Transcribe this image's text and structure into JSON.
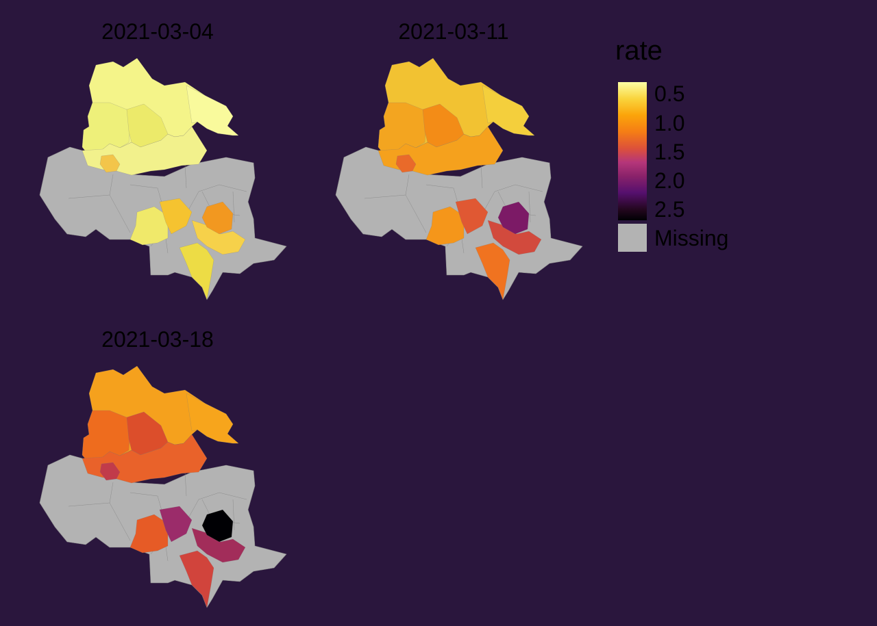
{
  "colors": {
    "background": "#2a163d",
    "missing": "#b3b3b3",
    "scale": "inferno (reversed): low rate = pale yellow, high rate = black"
  },
  "legend": {
    "title": "rate",
    "ticks": [
      "0.5",
      "1.0",
      "1.5",
      "2.0",
      "2.5"
    ],
    "missing_label": "Missing"
  },
  "panels": [
    {
      "title": "2021-03-04",
      "areas": {
        "north": "#f4f489",
        "ne_tail": "#f9fa9c",
        "nw_block": "#eef07a",
        "center_n": "#ecea6a",
        "sw_strip": "#f2f18c",
        "s_west": "#f0e96a",
        "s_core_1": "#f5c330",
        "s_core_2": "#f29820",
        "s_core_3": "#f6d14a",
        "s_south": "#eddc45",
        "small_w": "#f3c54a"
      }
    },
    {
      "title": "2021-03-11",
      "areas": {
        "north": "#f2c232",
        "ne_tail": "#f4cf3c",
        "nw_block": "#f3a520",
        "center_n": "#f38c17",
        "sw_strip": "#f5a11d",
        "s_west": "#f5961a",
        "s_core_1": "#e05833",
        "s_core_2": "#7c1a66",
        "s_core_3": "#d24a3d",
        "s_south": "#f07320",
        "small_w": "#e96a2a"
      }
    },
    {
      "title": "2021-03-18",
      "areas": {
        "north": "#f5a11d",
        "ne_tail": "#f7a51c",
        "nw_block": "#ee6c1e",
        "center_n": "#dc4e2b",
        "sw_strip": "#e9622a",
        "s_west": "#e65b26",
        "s_core_1": "#9b2c6a",
        "s_core_2": "#000004",
        "s_core_3": "#a22d5a",
        "s_south": "#d1443c",
        "small_w": "#c13b4a"
      }
    }
  ]
}
